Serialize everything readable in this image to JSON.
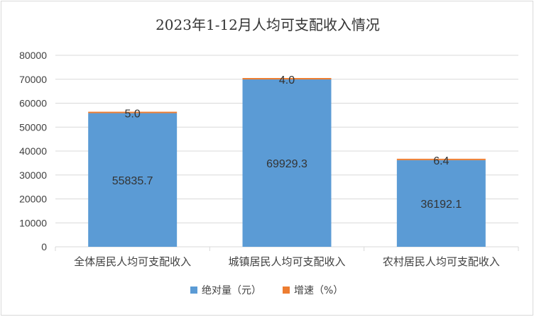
{
  "chart_data": {
    "type": "bar",
    "stacked": true,
    "title": "2023年1-12月人均可支配收入情况",
    "categories": [
      "全体居民人均可支配收入",
      "城镇居民人均可支配收入",
      "农村居民人均可支配收入"
    ],
    "series": [
      {
        "name": "绝对量（元）",
        "values": [
          55835.7,
          69929.3,
          36192.1
        ],
        "color": "#5b9bd5"
      },
      {
        "name": "增速（%）",
        "values": [
          5.0,
          4.0,
          6.4
        ],
        "color": "#ed7d31"
      }
    ],
    "ylim": [
      0,
      80000
    ],
    "yticks": [
      0,
      10000,
      20000,
      30000,
      40000,
      50000,
      60000,
      70000,
      80000
    ],
    "ytick_labels": [
      "0",
      "10000",
      "20000",
      "30000",
      "40000",
      "50000",
      "60000",
      "70000",
      "80000"
    ],
    "data_labels": {
      "absolute": [
        "55835.7",
        "69929.3",
        "36192.1"
      ],
      "growth": [
        "5.0",
        "4.0",
        "6.4"
      ]
    },
    "grid": true,
    "legend_position": "bottom"
  }
}
